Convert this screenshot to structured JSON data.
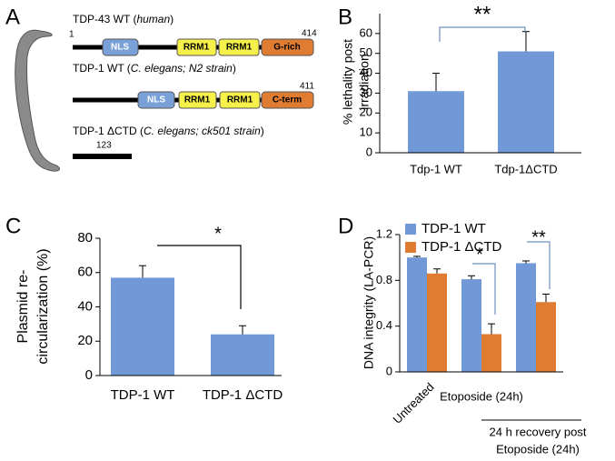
{
  "panel_a": {
    "letter": "A",
    "proteins": [
      {
        "label": [
          "TDP-43 WT (",
          "human",
          ")"
        ],
        "start": 1,
        "end": 414,
        "domains": [
          "NLS",
          "RRM1",
          "RRM1",
          "G-rich"
        ]
      },
      {
        "label": [
          "TDP-1 WT (",
          "C. elegans; N2 strain",
          ")"
        ],
        "end": 411,
        "domains": [
          "NLS",
          "RRM1",
          "RRM1",
          "C-term"
        ]
      },
      {
        "label": [
          "TDP-1 ΔCTD (",
          "C. elegans; ck501 strain",
          ")"
        ],
        "end": 123
      }
    ]
  },
  "chart_data": [
    {
      "type": "bar",
      "panel": "B",
      "ylabel": [
        "% lethality post",
        "irradiation"
      ],
      "categories": [
        "Tdp-1 WT",
        "Tdp-1ΔCTD"
      ],
      "values": [
        31,
        51
      ],
      "errors": [
        9,
        10
      ],
      "color": "#7199d8",
      "ylim": [
        0,
        70
      ],
      "yticks": [
        0,
        10,
        20,
        30,
        40,
        50,
        60
      ],
      "annotations": [
        "**"
      ]
    },
    {
      "type": "bar",
      "panel": "C",
      "ylabel": [
        "Plasmid re-",
        "circularization (%)"
      ],
      "categories": [
        "TDP-1 WT",
        "TDP-1  ΔCTD"
      ],
      "values": [
        57,
        24
      ],
      "errors": [
        7,
        5
      ],
      "color": "#7199d8",
      "ylim": [
        0,
        80
      ],
      "yticks": [
        0,
        20,
        40,
        60,
        80
      ],
      "annotations": [
        "*"
      ]
    },
    {
      "type": "bar",
      "panel": "D",
      "ylabel": [
        "DNA integrity (LA-PCR)"
      ],
      "categories": [
        "Untreated",
        "Etoposide (24h)",
        [
          "24 h recovery post",
          "Etoposide (24h)"
        ]
      ],
      "series": [
        {
          "name": "TDP-1 WT",
          "color": "#7199d8",
          "values": [
            1.0,
            0.81,
            0.95
          ],
          "errors": [
            0.01,
            0.03,
            0.02
          ]
        },
        {
          "name": "TDP-1 ΔCTD",
          "color": "#e07c32",
          "values": [
            0.86,
            0.33,
            0.61
          ],
          "errors": [
            0.04,
            0.09,
            0.07
          ]
        }
      ],
      "ylim": [
        0,
        1.2
      ],
      "yticks": [
        0,
        0.4,
        0.8,
        1.2
      ],
      "annotations": [
        "*",
        "**"
      ]
    }
  ]
}
